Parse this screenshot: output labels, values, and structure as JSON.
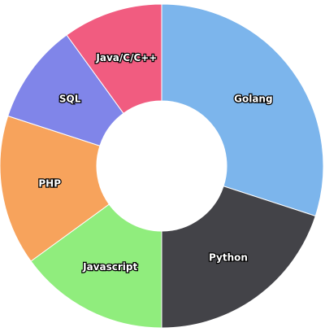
{
  "chart_data": {
    "type": "pie",
    "donut": true,
    "categories": [
      "Golang",
      "Python",
      "Javascript",
      "PHP",
      "SQL",
      "Java/C/C++"
    ],
    "values": [
      30,
      20,
      15,
      15,
      10,
      10
    ],
    "colors": [
      "#7cb5ec",
      "#434348",
      "#90ed7d",
      "#f7a35c",
      "#8085e9",
      "#f15c80"
    ],
    "start_angle": "12 o'clock",
    "direction": "clockwise",
    "legend": "none",
    "title": ""
  }
}
